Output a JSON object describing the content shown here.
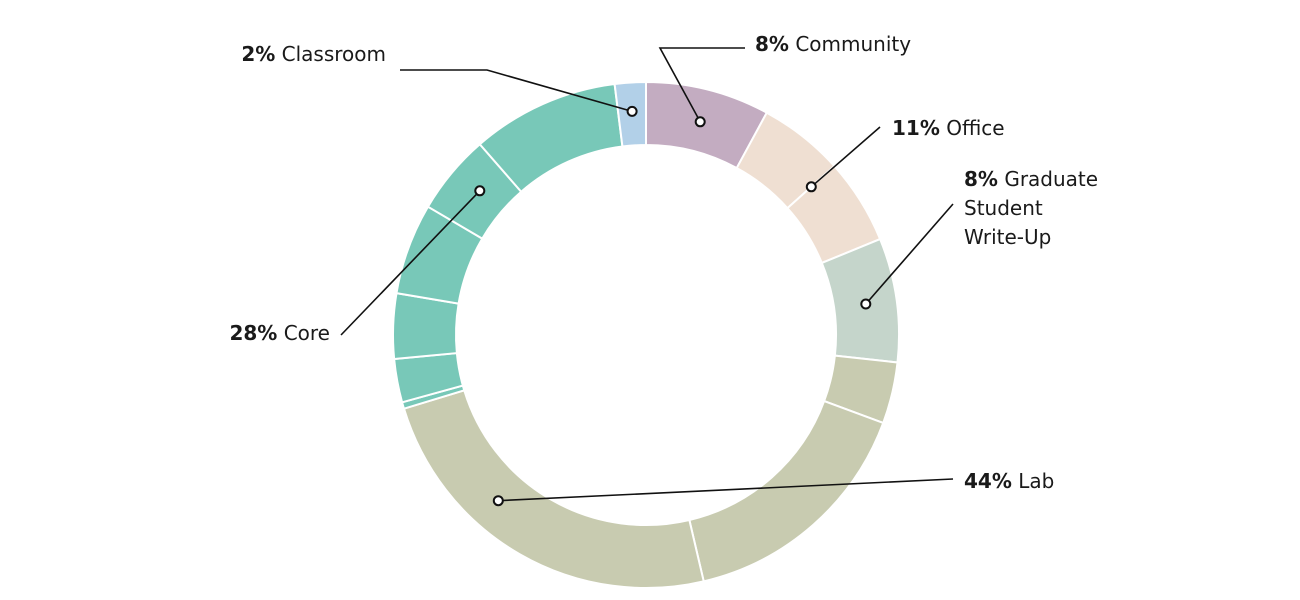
{
  "chart_data": {
    "type": "pie",
    "variant": "donut",
    "legend": "none",
    "series": [
      {
        "name": "Community",
        "value": 8,
        "label_pct": "8%",
        "label_text": "Community",
        "color": "#c3acc1"
      },
      {
        "name": "Office",
        "value": 11,
        "label_pct": "11%",
        "label_text": "Office",
        "color": "#efdfd2"
      },
      {
        "name": "Graduate Student Write-Up",
        "value": 8,
        "label_pct": "8%",
        "label_lines": [
          "Graduate",
          "Student",
          "Write-Up"
        ],
        "color": "#c5d5cb"
      },
      {
        "name": "Lab",
        "value": 44,
        "label_pct": "44%",
        "label_text": "Lab",
        "color": "#c8cbb0"
      },
      {
        "name": "Core",
        "value": 28,
        "label_pct": "28%",
        "label_text": "Core",
        "color": "#78c8b8"
      },
      {
        "name": "Classroom",
        "value": 2,
        "label_pct": "2%",
        "label_text": "Classroom",
        "color": "#b2d0e8"
      }
    ]
  }
}
